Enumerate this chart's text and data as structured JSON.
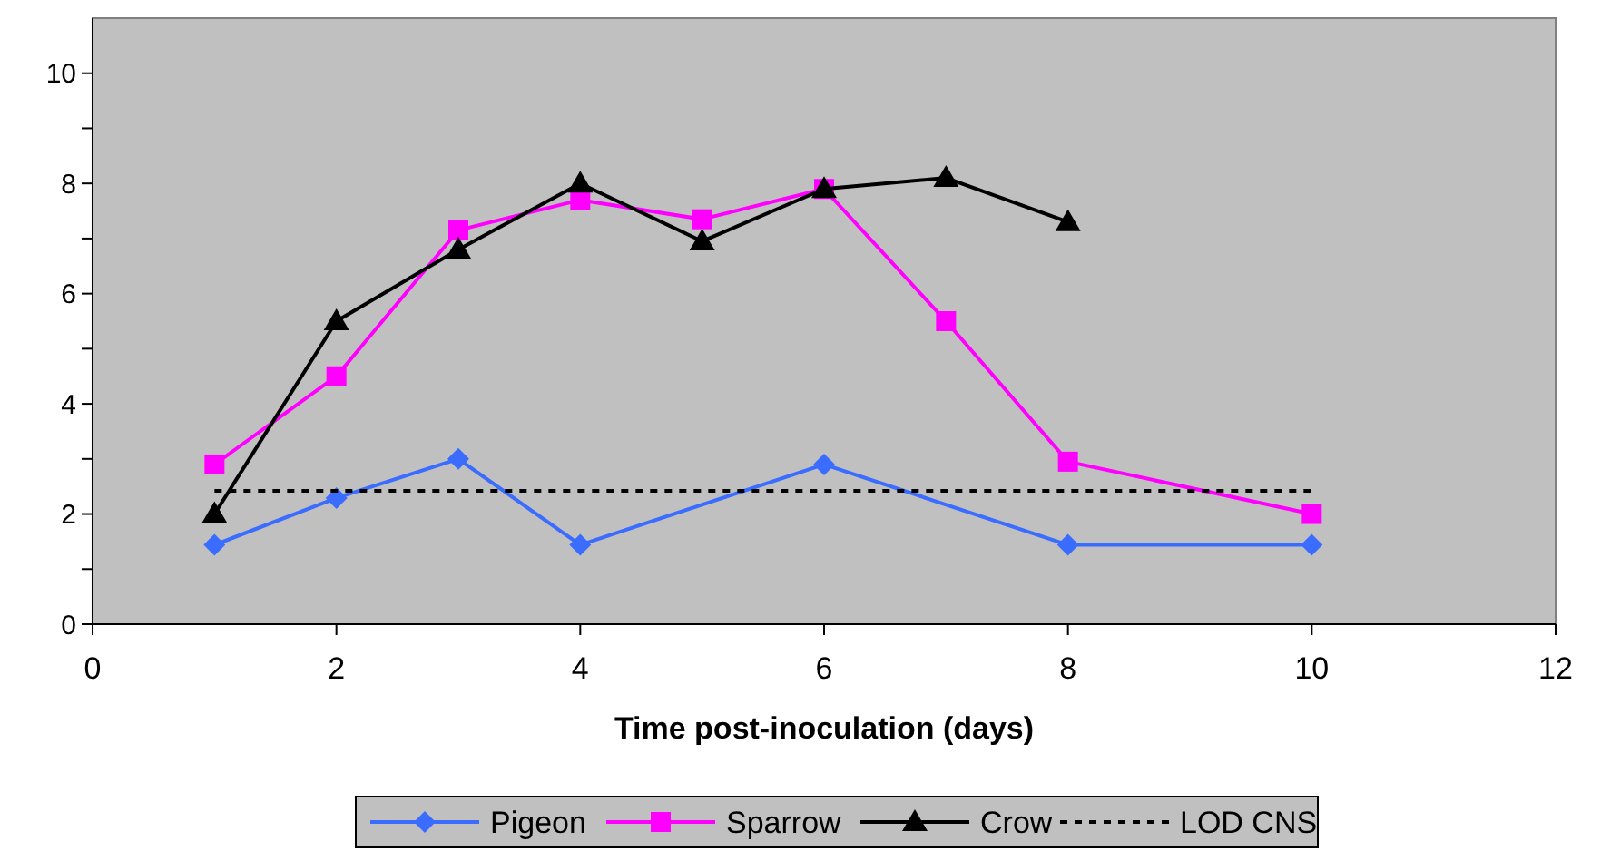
{
  "chart_data": {
    "type": "line",
    "xlabel": "Time post-inoculation (days)",
    "xlim": [
      0,
      12
    ],
    "xticks": [
      0,
      2,
      4,
      6,
      8,
      10,
      12
    ],
    "ylim": [
      0,
      11
    ],
    "yticks": [
      0,
      {
        "value": 1,
        "label": null
      },
      2,
      {
        "value": 3,
        "label": null
      },
      4,
      {
        "value": 5,
        "label": null
      },
      6,
      {
        "value": 7,
        "label": null
      },
      8,
      {
        "value": 9,
        "label": null
      },
      10
    ],
    "legend": "bottom",
    "grid": false,
    "series": [
      {
        "name": "Pigeon",
        "color": "#3a6cff",
        "marker": "diamond",
        "x": [
          1,
          2,
          3,
          4,
          6,
          8,
          10
        ],
        "values": [
          1.44,
          2.29,
          3.0,
          1.44,
          2.9,
          1.44,
          1.44
        ]
      },
      {
        "name": "Sparrow",
        "color": "#ff00ff",
        "marker": "square",
        "x": [
          1,
          2,
          3,
          4,
          5,
          6,
          7,
          8,
          10
        ],
        "values": [
          2.9,
          4.5,
          7.15,
          7.7,
          7.35,
          7.9,
          5.5,
          2.95,
          2.0
        ]
      },
      {
        "name": "Crow",
        "color": "#000000",
        "marker": "triangle",
        "x": [
          1,
          2,
          3,
          4,
          5,
          6,
          7,
          8
        ],
        "values": [
          2.0,
          5.5,
          6.8,
          8.0,
          6.95,
          7.9,
          8.1,
          7.3
        ]
      },
      {
        "name": "LOD CNS",
        "color": "#000000",
        "marker": "none",
        "line_style": "dashed",
        "x": [
          1,
          10
        ],
        "values": [
          2.42,
          2.42
        ]
      }
    ]
  }
}
